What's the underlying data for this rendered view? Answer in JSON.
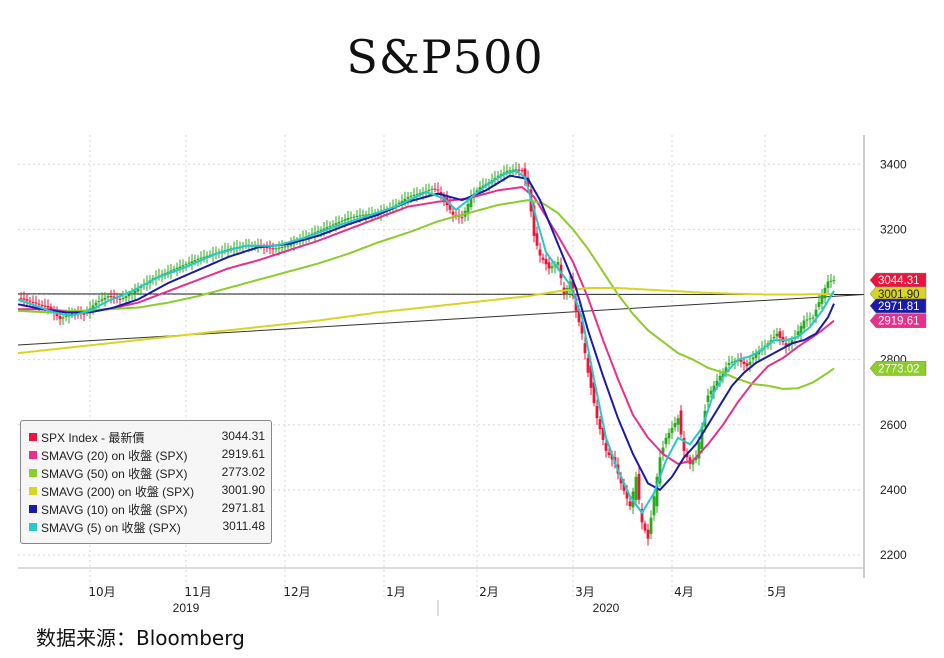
{
  "title": "S&P500",
  "source_label": "数据来源：Bloomberg",
  "chart_data": {
    "type": "line",
    "title": "S&P500",
    "y_ticks": [
      2200,
      2400,
      2600,
      2800,
      3000,
      3200,
      3400
    ],
    "y_tick_labels": [
      "2200",
      "2400",
      "2600",
      "2800",
      "3000",
      "3200",
      "3400"
    ],
    "ylim": [
      2160,
      3490
    ],
    "x_ticks": [
      {
        "label": "10月",
        "t": 28
      },
      {
        "label": "11月",
        "t": 60
      },
      {
        "label": "12月",
        "t": 93
      },
      {
        "label": "1月",
        "t": 126
      },
      {
        "label": "2月",
        "t": 157
      },
      {
        "label": "3月",
        "t": 189
      },
      {
        "label": "4月",
        "t": 222
      },
      {
        "label": "5月",
        "t": 253
      }
    ],
    "year_labels": [
      {
        "label": "2019",
        "t": 56
      },
      {
        "label": "2020",
        "t": 196
      }
    ],
    "x_range": [
      0,
      272
    ],
    "grid": true,
    "legend_position": "bottom-left",
    "series": [
      {
        "name": "SPX Index - 最新價",
        "color": "#e8163c",
        "last": "3044.31",
        "kp": [
          [
            0,
            2990
          ],
          [
            5,
            2975
          ],
          [
            10,
            2960
          ],
          [
            14,
            2925
          ],
          [
            18,
            2945
          ],
          [
            22,
            2940
          ],
          [
            26,
            2975
          ],
          [
            30,
            2995
          ],
          [
            34,
            2985
          ],
          [
            38,
            3005
          ],
          [
            45,
            3050
          ],
          [
            50,
            3070
          ],
          [
            55,
            3090
          ],
          [
            60,
            3110
          ],
          [
            65,
            3125
          ],
          [
            70,
            3140
          ],
          [
            75,
            3150
          ],
          [
            80,
            3150
          ],
          [
            85,
            3140
          ],
          [
            90,
            3150
          ],
          [
            95,
            3175
          ],
          [
            100,
            3195
          ],
          [
            105,
            3215
          ],
          [
            110,
            3235
          ],
          [
            115,
            3245
          ],
          [
            120,
            3250
          ],
          [
            125,
            3270
          ],
          [
            130,
            3300
          ],
          [
            135,
            3315
          ],
          [
            138,
            3325
          ],
          [
            140,
            3320
          ],
          [
            142,
            3290
          ],
          [
            145,
            3245
          ],
          [
            148,
            3235
          ],
          [
            151,
            3300
          ],
          [
            154,
            3330
          ],
          [
            157,
            3345
          ],
          [
            160,
            3365
          ],
          [
            163,
            3380
          ],
          [
            166,
            3385
          ],
          [
            168,
            3380
          ],
          [
            170,
            3330
          ],
          [
            172,
            3180
          ],
          [
            174,
            3120
          ],
          [
            177,
            3080
          ],
          [
            180,
            3100
          ],
          [
            182,
            3000
          ],
          [
            184,
            3040
          ],
          [
            186,
            2950
          ],
          [
            188,
            2880
          ],
          [
            190,
            2760
          ],
          [
            193,
            2620
          ],
          [
            196,
            2520
          ],
          [
            199,
            2480
          ],
          [
            201,
            2420
          ],
          [
            204,
            2350
          ],
          [
            206,
            2440
          ],
          [
            208,
            2300
          ],
          [
            210,
            2250
          ],
          [
            212,
            2380
          ],
          [
            214,
            2500
          ],
          [
            216,
            2560
          ],
          [
            218,
            2590
          ],
          [
            220,
            2620
          ],
          [
            222,
            2520
          ],
          [
            224,
            2480
          ],
          [
            226,
            2500
          ],
          [
            230,
            2690
          ],
          [
            234,
            2750
          ],
          [
            237,
            2790
          ],
          [
            240,
            2800
          ],
          [
            243,
            2780
          ],
          [
            246,
            2820
          ],
          [
            250,
            2850
          ],
          [
            253,
            2880
          ],
          [
            256,
            2840
          ],
          [
            259,
            2870
          ],
          [
            262,
            2920
          ],
          [
            265,
            2930
          ],
          [
            268,
            3000
          ],
          [
            270,
            3040
          ],
          [
            272,
            3044.31
          ]
        ]
      },
      {
        "name": "SMAVG (20)  on 收盤 (SPX)",
        "color": "#e6308c",
        "last": "2919.61",
        "kp": [
          [
            0,
            2955
          ],
          [
            10,
            2955
          ],
          [
            20,
            2945
          ],
          [
            30,
            2955
          ],
          [
            40,
            2975
          ],
          [
            50,
            3010
          ],
          [
            60,
            3045
          ],
          [
            70,
            3080
          ],
          [
            80,
            3105
          ],
          [
            90,
            3135
          ],
          [
            100,
            3165
          ],
          [
            110,
            3200
          ],
          [
            120,
            3235
          ],
          [
            130,
            3270
          ],
          [
            140,
            3285
          ],
          [
            150,
            3295
          ],
          [
            160,
            3320
          ],
          [
            168,
            3330
          ],
          [
            172,
            3300
          ],
          [
            176,
            3240
          ],
          [
            180,
            3180
          ],
          [
            185,
            3100
          ],
          [
            190,
            2990
          ],
          [
            195,
            2860
          ],
          [
            200,
            2740
          ],
          [
            205,
            2630
          ],
          [
            210,
            2560
          ],
          [
            215,
            2510
          ],
          [
            220,
            2480
          ],
          [
            225,
            2490
          ],
          [
            230,
            2540
          ],
          [
            235,
            2600
          ],
          [
            240,
            2670
          ],
          [
            245,
            2730
          ],
          [
            250,
            2780
          ],
          [
            255,
            2805
          ],
          [
            260,
            2840
          ],
          [
            265,
            2870
          ],
          [
            268,
            2890
          ],
          [
            272,
            2919.61
          ]
        ]
      },
      {
        "name": "SMAVG (50)  on 收盤 (SPX)",
        "color": "#8ccc2c",
        "last": "2773.02",
        "kp": [
          [
            0,
            2950
          ],
          [
            10,
            2945
          ],
          [
            20,
            2950
          ],
          [
            30,
            2955
          ],
          [
            40,
            2960
          ],
          [
            50,
            2975
          ],
          [
            60,
            2995
          ],
          [
            70,
            3020
          ],
          [
            80,
            3045
          ],
          [
            90,
            3070
          ],
          [
            100,
            3095
          ],
          [
            110,
            3125
          ],
          [
            120,
            3160
          ],
          [
            130,
            3190
          ],
          [
            140,
            3225
          ],
          [
            150,
            3250
          ],
          [
            160,
            3275
          ],
          [
            170,
            3290
          ],
          [
            175,
            3280
          ],
          [
            180,
            3250
          ],
          [
            185,
            3200
          ],
          [
            190,
            3140
          ],
          [
            195,
            3070
          ],
          [
            200,
            3000
          ],
          [
            205,
            2940
          ],
          [
            210,
            2890
          ],
          [
            215,
            2855
          ],
          [
            220,
            2820
          ],
          [
            225,
            2800
          ],
          [
            230,
            2775
          ],
          [
            235,
            2760
          ],
          [
            240,
            2740
          ],
          [
            245,
            2725
          ],
          [
            250,
            2720
          ],
          [
            255,
            2710
          ],
          [
            260,
            2712
          ],
          [
            265,
            2730
          ],
          [
            270,
            2760
          ],
          [
            272,
            2773.02
          ]
        ]
      },
      {
        "name": "SMAVG (200)  on 收盤 (SPX)",
        "color": "#d8d424",
        "last": "3001.90",
        "kp": [
          [
            0,
            2820
          ],
          [
            20,
            2840
          ],
          [
            40,
            2860
          ],
          [
            60,
            2880
          ],
          [
            80,
            2900
          ],
          [
            100,
            2920
          ],
          [
            120,
            2945
          ],
          [
            140,
            2965
          ],
          [
            150,
            2975
          ],
          [
            160,
            2985
          ],
          [
            170,
            2995
          ],
          [
            180,
            3010
          ],
          [
            190,
            3020
          ],
          [
            200,
            3020
          ],
          [
            210,
            3015
          ],
          [
            220,
            3010
          ],
          [
            230,
            3005
          ],
          [
            240,
            3002
          ],
          [
            250,
            3000
          ],
          [
            260,
            3000
          ],
          [
            272,
            3001.9
          ]
        ]
      },
      {
        "name": "SMAVG (10)  on 收盤 (SPX)",
        "color": "#1a1aa8",
        "last": "2971.81",
        "kp": [
          [
            0,
            2970
          ],
          [
            8,
            2955
          ],
          [
            16,
            2945
          ],
          [
            24,
            2945
          ],
          [
            32,
            2960
          ],
          [
            40,
            2985
          ],
          [
            50,
            3035
          ],
          [
            60,
            3075
          ],
          [
            70,
            3115
          ],
          [
            80,
            3145
          ],
          [
            90,
            3155
          ],
          [
            100,
            3180
          ],
          [
            110,
            3215
          ],
          [
            120,
            3245
          ],
          [
            130,
            3285
          ],
          [
            140,
            3310
          ],
          [
            148,
            3290
          ],
          [
            156,
            3320
          ],
          [
            164,
            3365
          ],
          [
            170,
            3355
          ],
          [
            174,
            3290
          ],
          [
            178,
            3200
          ],
          [
            182,
            3110
          ],
          [
            186,
            3020
          ],
          [
            190,
            2890
          ],
          [
            195,
            2750
          ],
          [
            200,
            2620
          ],
          [
            205,
            2510
          ],
          [
            210,
            2420
          ],
          [
            214,
            2400
          ],
          [
            218,
            2440
          ],
          [
            222,
            2500
          ],
          [
            226,
            2540
          ],
          [
            230,
            2600
          ],
          [
            234,
            2660
          ],
          [
            238,
            2720
          ],
          [
            242,
            2760
          ],
          [
            246,
            2790
          ],
          [
            250,
            2810
          ],
          [
            254,
            2830
          ],
          [
            258,
            2850
          ],
          [
            262,
            2860
          ],
          [
            266,
            2880
          ],
          [
            270,
            2930
          ],
          [
            272,
            2971.81
          ]
        ]
      },
      {
        "name": "SMAVG (5)  on 收盤 (SPX)",
        "color": "#28c8c8",
        "last": "3011.48",
        "kp": [
          [
            0,
            2985
          ],
          [
            6,
            2965
          ],
          [
            12,
            2945
          ],
          [
            18,
            2935
          ],
          [
            24,
            2950
          ],
          [
            30,
            2980
          ],
          [
            38,
            3010
          ],
          [
            46,
            3050
          ],
          [
            56,
            3085
          ],
          [
            66,
            3125
          ],
          [
            76,
            3150
          ],
          [
            86,
            3150
          ],
          [
            96,
            3175
          ],
          [
            106,
            3210
          ],
          [
            116,
            3240
          ],
          [
            126,
            3270
          ],
          [
            136,
            3315
          ],
          [
            142,
            3295
          ],
          [
            146,
            3260
          ],
          [
            150,
            3290
          ],
          [
            156,
            3335
          ],
          [
            162,
            3370
          ],
          [
            166,
            3380
          ],
          [
            169,
            3360
          ],
          [
            172,
            3260
          ],
          [
            176,
            3130
          ],
          [
            180,
            3080
          ],
          [
            184,
            3030
          ],
          [
            188,
            2930
          ],
          [
            192,
            2740
          ],
          [
            196,
            2560
          ],
          [
            200,
            2460
          ],
          [
            204,
            2380
          ],
          [
            208,
            2330
          ],
          [
            212,
            2390
          ],
          [
            216,
            2490
          ],
          [
            220,
            2560
          ],
          [
            224,
            2540
          ],
          [
            228,
            2590
          ],
          [
            232,
            2700
          ],
          [
            236,
            2760
          ],
          [
            240,
            2800
          ],
          [
            244,
            2810
          ],
          [
            248,
            2830
          ],
          [
            252,
            2860
          ],
          [
            256,
            2860
          ],
          [
            260,
            2870
          ],
          [
            264,
            2900
          ],
          [
            268,
            2950
          ],
          [
            272,
            3011.48
          ]
        ]
      }
    ],
    "trend_lines": [
      {
        "from": [
          0,
          3002
        ],
        "to": [
          272,
          3000
        ],
        "color": "#222222"
      },
      {
        "from": [
          0,
          2845
        ],
        "to": [
          272,
          3000
        ],
        "color": "#333333"
      }
    ]
  }
}
